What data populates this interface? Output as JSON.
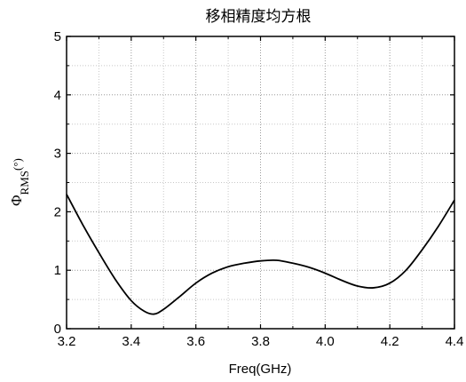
{
  "chart_data": {
    "type": "line",
    "title": "移相精度均方根",
    "xlabel": "Freq(GHz)",
    "ylabel": {
      "symbol": "Φ",
      "subscript": "RMS",
      "unit": "(°)"
    },
    "xlim": [
      3.2,
      4.4
    ],
    "ylim": [
      0,
      5
    ],
    "xticks": [
      "3.2",
      "3.4",
      "3.6",
      "3.8",
      "4.0",
      "4.2",
      "4.4"
    ],
    "yticks": [
      "0",
      "1",
      "2",
      "3",
      "4",
      "5"
    ],
    "x_tick_values": [
      3.2,
      3.4,
      3.6,
      3.8,
      4.0,
      4.2,
      4.4
    ],
    "y_tick_values": [
      0,
      1,
      2,
      3,
      4,
      5
    ],
    "grid": true,
    "grid_style": "dotted",
    "series": [
      {
        "color": "#000000",
        "x": [
          3.2,
          3.25,
          3.3,
          3.35,
          3.4,
          3.44,
          3.47,
          3.5,
          3.55,
          3.6,
          3.65,
          3.7,
          3.75,
          3.8,
          3.85,
          3.9,
          3.95,
          4.0,
          4.05,
          4.1,
          4.15,
          4.2,
          4.25,
          4.3,
          4.35,
          4.4
        ],
        "y": [
          2.3,
          1.78,
          1.3,
          0.85,
          0.48,
          0.3,
          0.25,
          0.33,
          0.55,
          0.78,
          0.95,
          1.06,
          1.12,
          1.16,
          1.17,
          1.12,
          1.05,
          0.95,
          0.83,
          0.73,
          0.7,
          0.78,
          1.0,
          1.35,
          1.75,
          2.2
        ]
      }
    ]
  }
}
